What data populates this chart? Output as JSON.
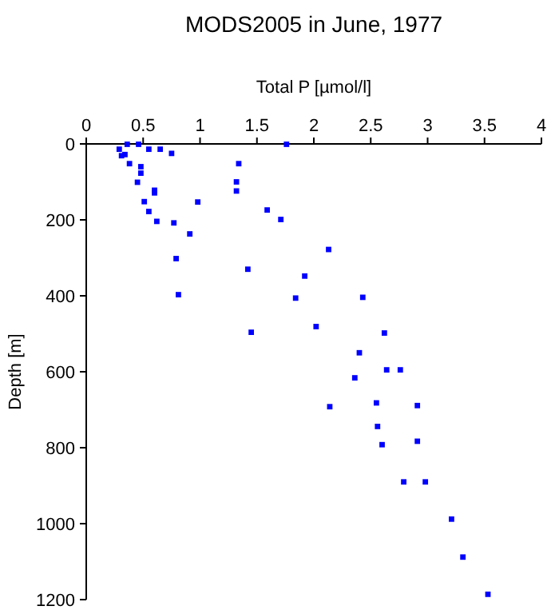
{
  "chart_data": {
    "type": "scatter",
    "title": "MODS2005 in June, 1977",
    "xlabel": "Total P [µmol/l]",
    "ylabel": "Depth [m]",
    "xlim": [
      0,
      4
    ],
    "xticks": [
      0,
      0.5,
      1,
      1.5,
      2,
      2.5,
      3,
      3.5,
      4
    ],
    "ylim": [
      1200,
      0
    ],
    "yticks": [
      0,
      200,
      400,
      600,
      800,
      1000,
      1200
    ],
    "grid": false,
    "marker": "square",
    "series": [
      {
        "color": "#0000ff",
        "x": [
          0.29,
          0.31,
          0.34,
          0.36,
          0.46,
          0.38,
          0.55,
          0.65,
          0.75,
          1.76,
          0.48,
          0.48,
          0.45,
          0.6,
          0.6,
          1.34,
          1.32,
          1.32,
          0.51,
          0.98,
          0.55,
          1.59,
          0.62,
          0.77,
          1.71,
          0.91,
          2.13,
          0.79,
          1.42,
          1.92,
          0.81,
          1.84,
          2.43,
          1.45,
          2.02,
          2.62,
          2.4,
          2.64,
          2.76,
          2.36,
          2.14,
          2.55,
          2.91,
          2.56,
          2.6,
          2.91,
          2.79,
          2.98,
          3.21,
          3.31,
          3.53
        ],
        "values": [
          14,
          31,
          28,
          1,
          1,
          52,
          14,
          14,
          25,
          1,
          60,
          77,
          101,
          122,
          129,
          52,
          100,
          124,
          152,
          153,
          178,
          174,
          204,
          208,
          199,
          237,
          278,
          302,
          330,
          348,
          397,
          406,
          404,
          496,
          481,
          498,
          550,
          595,
          595,
          616,
          692,
          682,
          689,
          744,
          792,
          783,
          890,
          890,
          988,
          1088,
          1186
        ]
      }
    ]
  }
}
